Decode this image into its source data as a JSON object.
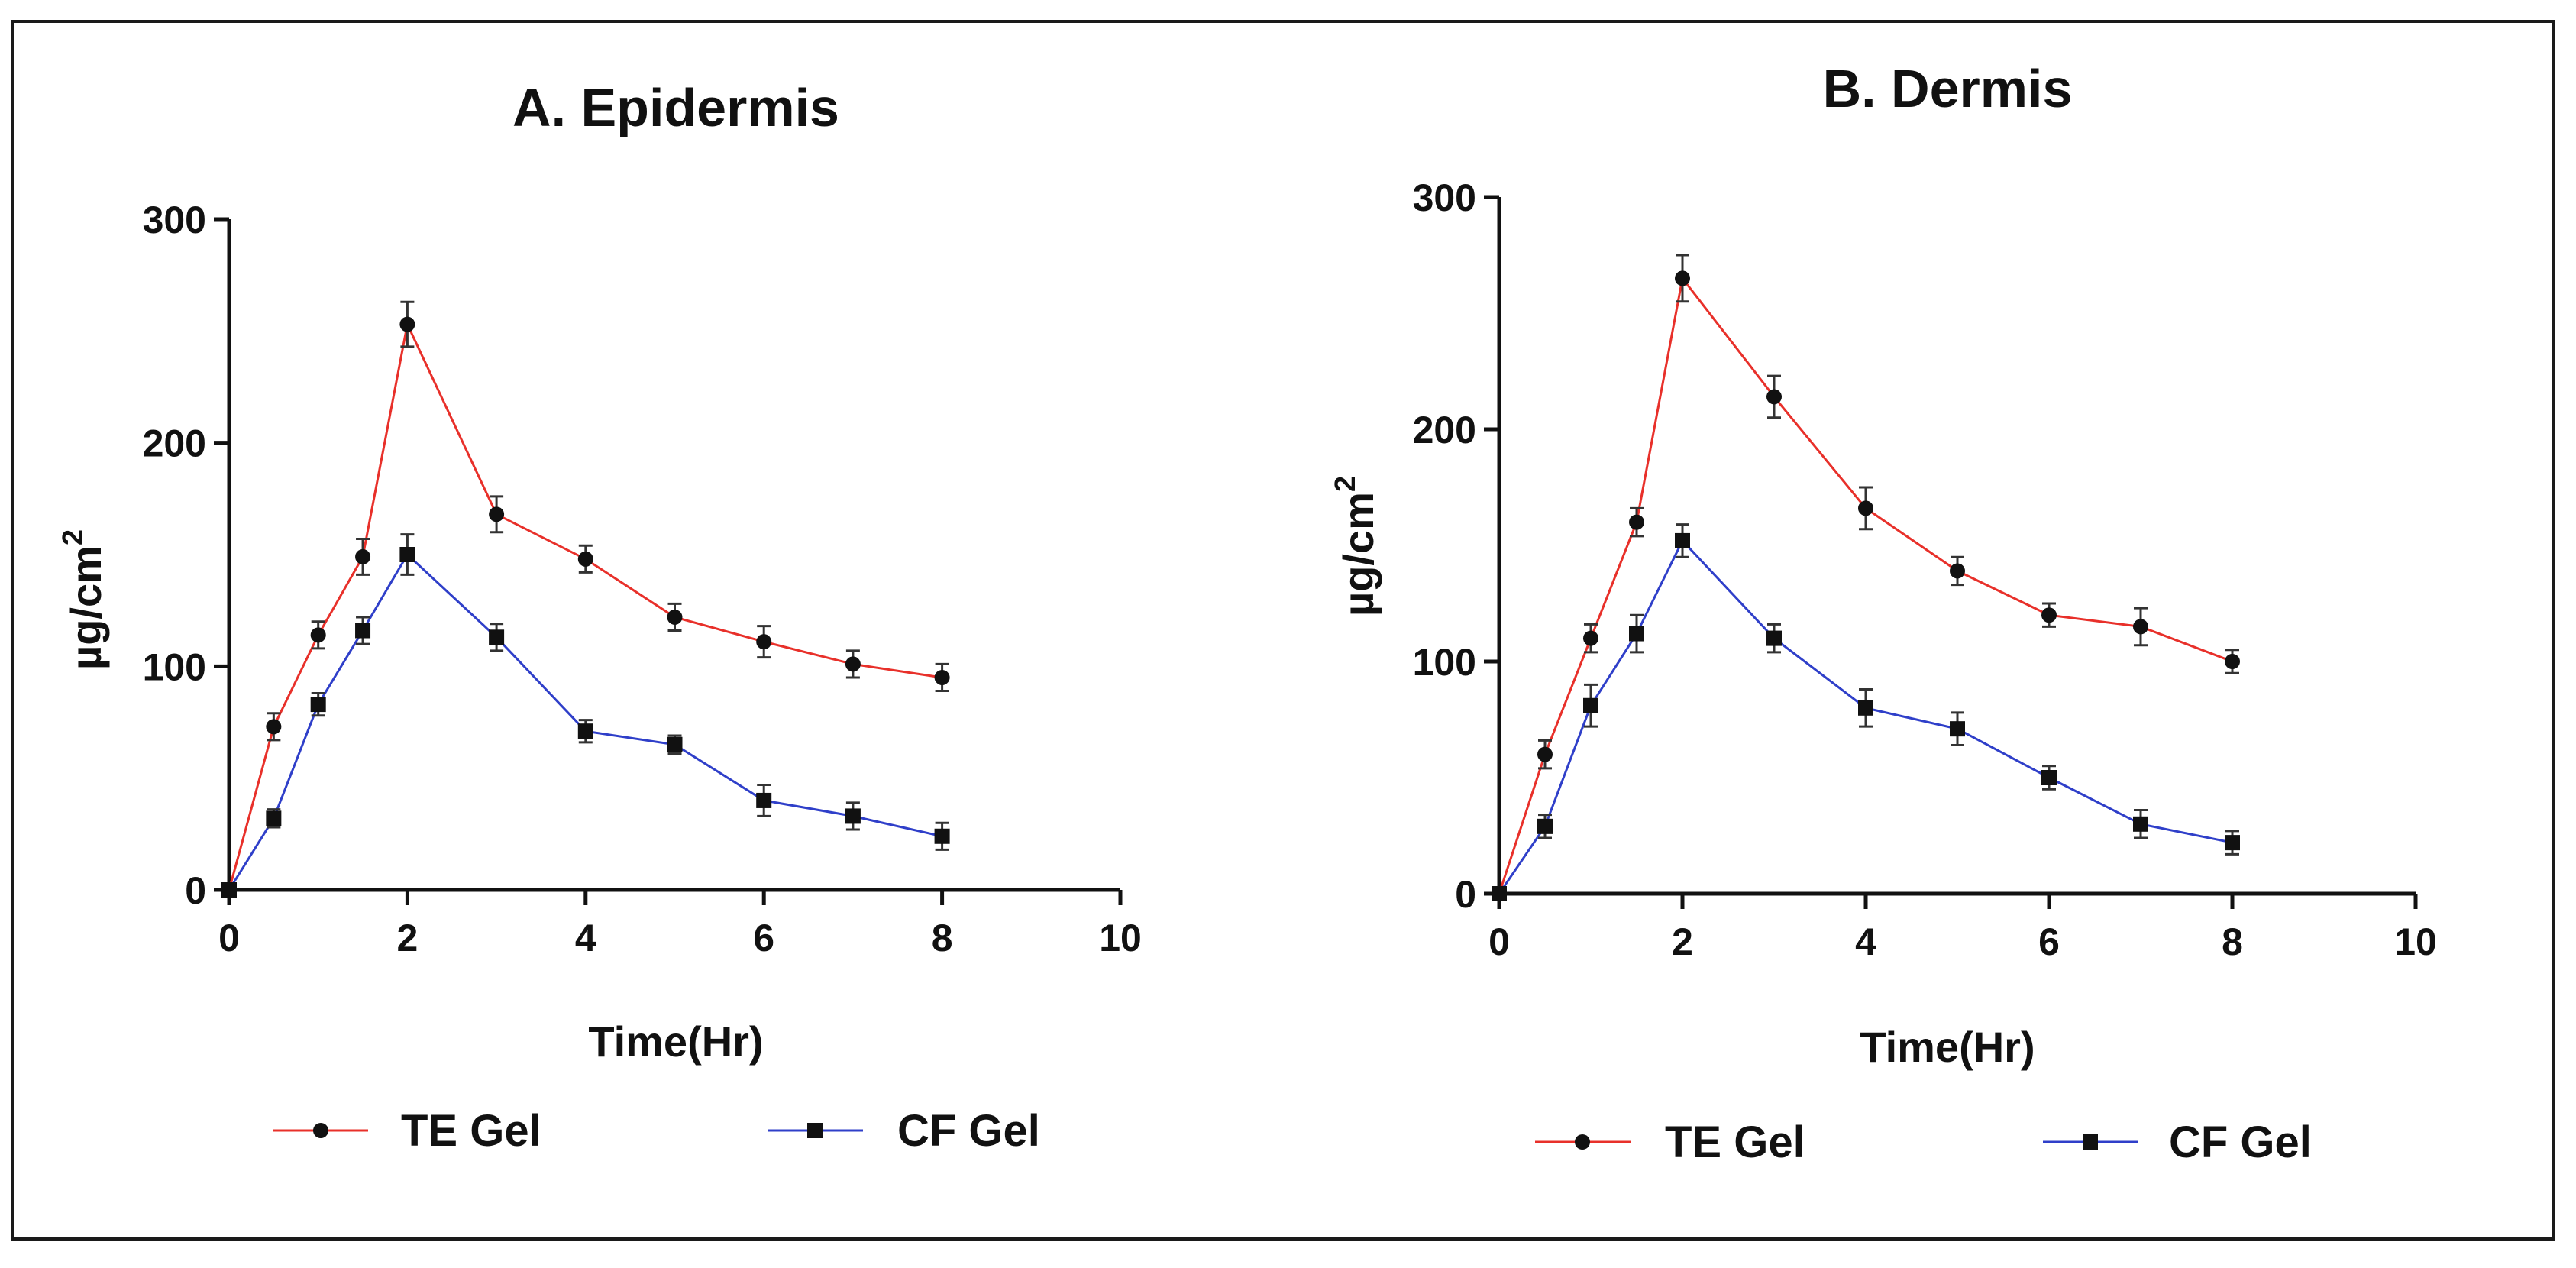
{
  "figure": {
    "panels_count": 2
  },
  "chart_data": [
    {
      "type": "line",
      "title": "A. Epidermis",
      "xlabel": "Time(Hr)",
      "ylabel": "µg/cm",
      "ylabel_sup": "2",
      "xlim": [
        0,
        10
      ],
      "ylim": [
        0,
        300
      ],
      "xticks": [
        0,
        2,
        4,
        6,
        8,
        10
      ],
      "yticks": [
        0,
        100,
        200,
        300
      ],
      "x": [
        0,
        0.5,
        1,
        1.5,
        2,
        3,
        4,
        5,
        6,
        7,
        8
      ],
      "series": [
        {
          "name": "TE Gel",
          "color": "#e8302a",
          "marker": "circle",
          "values": [
            0,
            73,
            114,
            149,
            253,
            168,
            148,
            122,
            111,
            101,
            95
          ],
          "errors": [
            2,
            6,
            6,
            8,
            10,
            8,
            6,
            6,
            7,
            6,
            6
          ]
        },
        {
          "name": "CF Gel",
          "color": "#2f3fc9",
          "marker": "square",
          "values": [
            0,
            32,
            83,
            116,
            150,
            113,
            71,
            65,
            40,
            33,
            24
          ],
          "errors": [
            2,
            4,
            5,
            6,
            9,
            6,
            5,
            4,
            7,
            6,
            6
          ]
        }
      ]
    },
    {
      "type": "line",
      "title": "B. Dermis",
      "xlabel": "Time(Hr)",
      "ylabel": "µg/cm",
      "ylabel_sup": "2",
      "xlim": [
        0,
        10
      ],
      "ylim": [
        0,
        300
      ],
      "xticks": [
        0,
        2,
        4,
        6,
        8,
        10
      ],
      "yticks": [
        0,
        100,
        200,
        300
      ],
      "x": [
        0,
        0.5,
        1,
        1.5,
        2,
        3,
        4,
        5,
        6,
        7,
        8
      ],
      "series": [
        {
          "name": "TE Gel",
          "color": "#e8302a",
          "marker": "circle",
          "values": [
            0,
            60,
            110,
            160,
            265,
            214,
            166,
            139,
            120,
            115,
            100
          ],
          "errors": [
            2,
            6,
            6,
            6,
            10,
            9,
            9,
            6,
            5,
            8,
            5
          ]
        },
        {
          "name": "CF Gel",
          "color": "#2f3fc9",
          "marker": "square",
          "values": [
            0,
            29,
            81,
            112,
            152,
            110,
            80,
            71,
            50,
            30,
            22
          ],
          "errors": [
            2,
            5,
            9,
            8,
            7,
            6,
            8,
            7,
            5,
            6,
            5
          ]
        }
      ]
    }
  ]
}
